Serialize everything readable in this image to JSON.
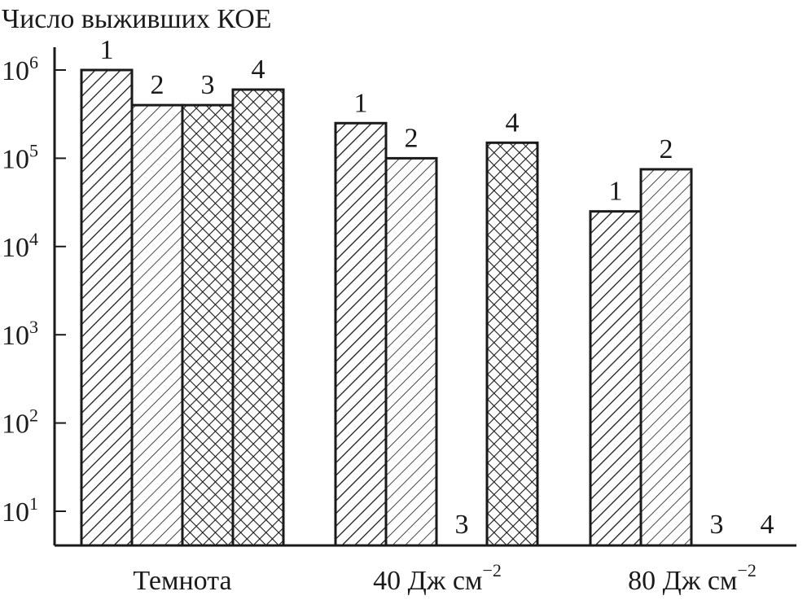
{
  "chart_data": {
    "type": "bar",
    "title": "",
    "ylabel": "Число выживших КОЕ",
    "xlabel": "",
    "yscale": "log",
    "ylim": [
      6,
      1000000
    ],
    "grid": false,
    "yticks": [
      {
        "value": 10,
        "base": "10",
        "exp": "1"
      },
      {
        "value": 100,
        "base": "10",
        "exp": "2"
      },
      {
        "value": 1000,
        "base": "10",
        "exp": "3"
      },
      {
        "value": 10000,
        "base": "10",
        "exp": "4"
      },
      {
        "value": 100000,
        "base": "10",
        "exp": "5"
      },
      {
        "value": 1000000,
        "base": "10",
        "exp": "6"
      }
    ],
    "categories": [
      {
        "label": "Темнота",
        "sup": ""
      },
      {
        "label": "40 Дж см",
        "sup": "−2"
      },
      {
        "label": "80 Дж см",
        "sup": "−2"
      }
    ],
    "series": [
      {
        "name": "1",
        "pattern": "hatch-dense",
        "values": [
          1000000,
          250000,
          25000
        ]
      },
      {
        "name": "2",
        "pattern": "hatch-sparse",
        "values": [
          400000,
          100000,
          75000
        ]
      },
      {
        "name": "3",
        "pattern": "crosshatch",
        "values": [
          400000,
          null,
          null
        ]
      },
      {
        "name": "4",
        "pattern": "crosshatch",
        "values": [
          600000,
          150000,
          null
        ]
      }
    ]
  }
}
